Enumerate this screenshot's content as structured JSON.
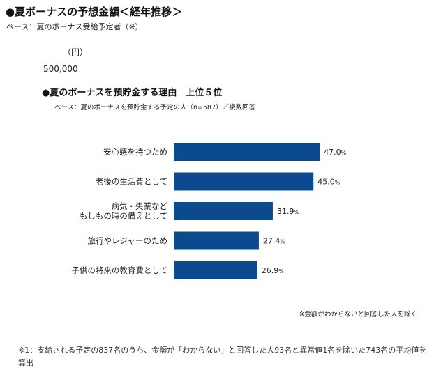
{
  "header": {
    "title": "●夏ボーナスの予想金額＜経年推移＞",
    "base": "ベース：夏のボーナス受給予定者（※）",
    "unit": "（円）",
    "value": "500,000"
  },
  "chart_data": {
    "type": "bar",
    "orientation": "horizontal",
    "title": "●夏のボーナスを預貯金する理由　上位５位",
    "subtitle": "ベース：夏のボーナスを預貯金する予定の人（n=587）／複数回答",
    "categories": [
      [
        "安心感を持つため"
      ],
      [
        "老後の生活費として"
      ],
      [
        "病気・失業など",
        "もしもの時の備えとして"
      ],
      [
        "旅行やレジャーのため"
      ],
      [
        "子供の将来の教育費として"
      ]
    ],
    "values": [
      47.0,
      45.0,
      31.9,
      27.4,
      26.9
    ],
    "value_labels": [
      "47.0",
      "45.0",
      "31.9",
      "27.4",
      "26.9"
    ],
    "unit": "%",
    "xlim": [
      0,
      100
    ],
    "bar_color": "#0b4a8e",
    "grid": false
  },
  "notes": {
    "exclude": "※金額がわからないと回答した人を除く",
    "footnote": "※1：支給される予定の837名のうち、金額が「わからない」と回答した人93名と異常値1名を除いた743名の平均値を算出"
  }
}
